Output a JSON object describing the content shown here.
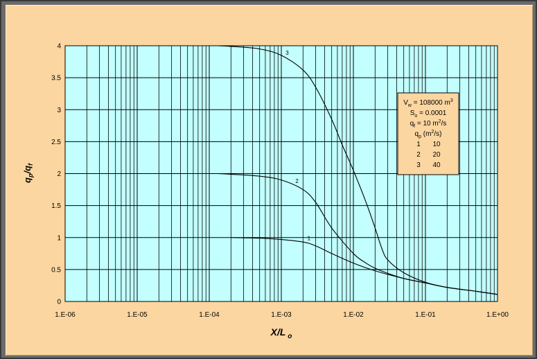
{
  "chart_data": {
    "type": "line",
    "x_scale": "log",
    "xlim": [
      1e-06,
      1
    ],
    "ylim": [
      0,
      4
    ],
    "grid": true,
    "xlabel": "X/L o",
    "ylabel": "qp/qf",
    "x_tick_labels": [
      "1.E-06",
      "1.E-05",
      "1.E-04",
      "1.E-03",
      "1.E-02",
      "1.E-01",
      "1.E+00"
    ],
    "y_tick_labels": [
      "0",
      "0.5",
      "1",
      "1.5",
      "2",
      "2.5",
      "3",
      "3.5",
      "4"
    ],
    "series": [
      {
        "name": "1",
        "x": [
          0.0002,
          0.0005,
          0.001,
          0.002,
          0.003,
          0.005,
          0.01,
          0.02,
          0.05,
          0.1,
          0.2,
          0.5,
          1
        ],
        "y": [
          1.0,
          0.99,
          0.97,
          0.93,
          0.87,
          0.75,
          0.6,
          0.48,
          0.36,
          0.29,
          0.22,
          0.16,
          0.11
        ]
      },
      {
        "name": "2",
        "x": [
          0.00013,
          0.0002,
          0.0005,
          0.001,
          0.002,
          0.003,
          0.005,
          0.01,
          0.015,
          0.02,
          0.03,
          0.05,
          0.1,
          0.2,
          0.5,
          1
        ],
        "y": [
          2.0,
          1.99,
          1.96,
          1.9,
          1.75,
          1.55,
          1.15,
          0.75,
          0.6,
          0.52,
          0.44,
          0.36,
          0.29,
          0.22,
          0.16,
          0.11
        ]
      },
      {
        "name": "3",
        "x": [
          0.00013,
          0.0002,
          0.0005,
          0.001,
          0.002,
          0.003,
          0.005,
          0.007,
          0.01,
          0.015,
          0.02,
          0.025,
          0.03,
          0.05,
          0.1,
          0.2,
          0.5,
          1
        ],
        "y": [
          4.0,
          3.99,
          3.95,
          3.85,
          3.62,
          3.35,
          2.85,
          2.45,
          2.05,
          1.55,
          1.15,
          0.82,
          0.65,
          0.45,
          0.3,
          0.22,
          0.16,
          0.11
        ]
      }
    ],
    "legend": {
      "placement": "right",
      "lines": [
        [
          "V",
          "w",
          " = 108000 m",
          "3",
          ""
        ],
        [
          "S",
          "o",
          " = 0.0001",
          "",
          ""
        ],
        [
          "q",
          "f",
          " = 10 m",
          "2",
          "/s"
        ],
        [
          "q",
          "p",
          "  (m",
          "2",
          "/s)"
        ]
      ],
      "table": [
        [
          "1",
          "10"
        ],
        [
          "2",
          "20"
        ],
        [
          "3",
          "40"
        ]
      ]
    }
  },
  "colors": {
    "outer_background": "#fcd6a0",
    "plot_background": "#c2fffe",
    "grid": "#000000",
    "curve": "#000000",
    "legend_background": "#fcd6a0"
  }
}
